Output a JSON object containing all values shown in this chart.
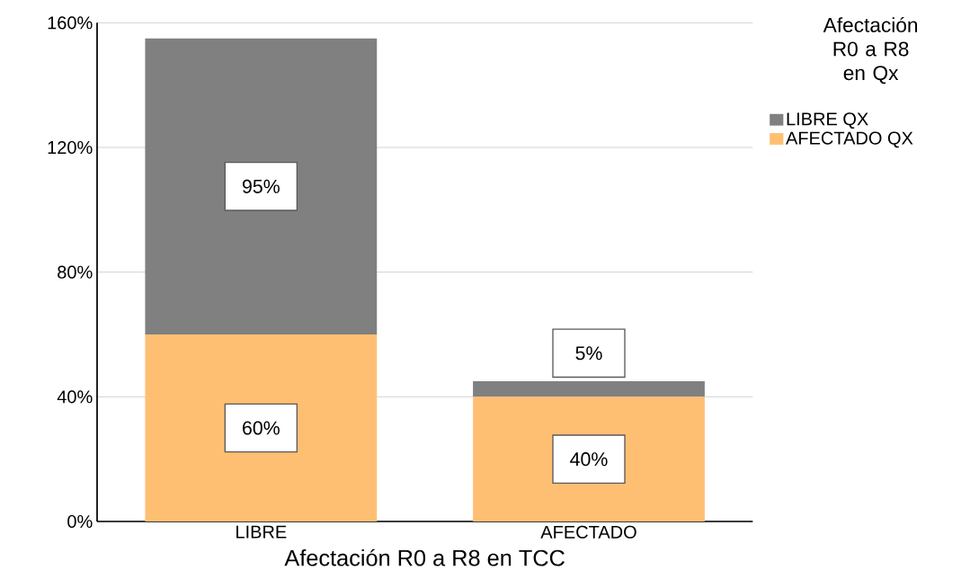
{
  "chart_data": {
    "type": "bar",
    "stacked": true,
    "categories": [
      "LIBRE",
      "AFECTADO"
    ],
    "series": [
      {
        "name": "AFECTADO QX",
        "color": "#ffbf73",
        "values": [
          60,
          40
        ],
        "value_labels": [
          "60%",
          "40%"
        ]
      },
      {
        "name": "LIBRE QX",
        "color": "#808080",
        "values": [
          95,
          5
        ],
        "value_labels": [
          "95%",
          "5%"
        ]
      }
    ],
    "xlabel": "Afectación R0 a R8 en TCC",
    "legend_title": "Afectación R0 a R8 en Qx",
    "legend": "top right",
    "grid": "y",
    "ylim": [
      0,
      160
    ],
    "yticks": [
      {
        "value": 0,
        "label": "0%"
      },
      {
        "value": 40,
        "label": "40%"
      },
      {
        "value": 80,
        "label": "80%"
      },
      {
        "value": 120,
        "label": "120%"
      },
      {
        "value": 160,
        "label": "160%"
      }
    ]
  }
}
